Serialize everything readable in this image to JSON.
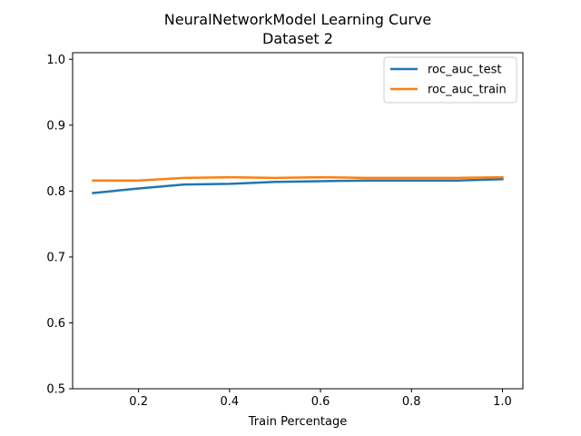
{
  "chart_data": {
    "type": "line",
    "title": "NeuralNetworkModel Learning Curve",
    "subtitle": "Dataset 2",
    "xlabel": "Train Percentage",
    "ylabel": "",
    "x": [
      0.1,
      0.2,
      0.3,
      0.4,
      0.5,
      0.6,
      0.7,
      0.8,
      0.9,
      1.0
    ],
    "xlim": [
      0.055,
      1.045
    ],
    "ylim": [
      0.5,
      1.01
    ],
    "xticks": [
      0.2,
      0.4,
      0.6,
      0.8,
      1.0
    ],
    "xtick_labels": [
      "0.2",
      "0.4",
      "0.6",
      "0.8",
      "1.0"
    ],
    "yticks": [
      0.5,
      0.6,
      0.7,
      0.8,
      0.9,
      1.0
    ],
    "ytick_labels": [
      "0.5",
      "0.6",
      "0.7",
      "0.8",
      "0.9",
      "1.0"
    ],
    "grid": false,
    "legend_position": "top-right",
    "series": [
      {
        "name": "roc_auc_test",
        "color": "#1f77b4",
        "values": [
          0.797,
          0.804,
          0.81,
          0.811,
          0.814,
          0.815,
          0.816,
          0.816,
          0.816,
          0.818
        ]
      },
      {
        "name": "roc_auc_train",
        "color": "#ff7f0e",
        "values": [
          0.816,
          0.816,
          0.82,
          0.821,
          0.82,
          0.821,
          0.82,
          0.82,
          0.82,
          0.821
        ]
      }
    ]
  }
}
